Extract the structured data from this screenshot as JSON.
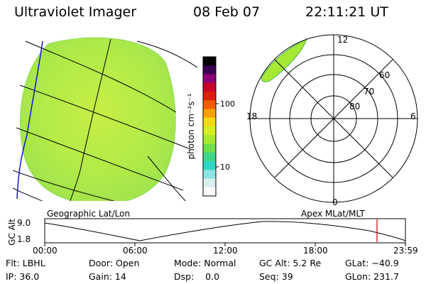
{
  "header": {
    "title": "Ultraviolet Imager",
    "date": "08 Feb 07",
    "time": "22:11:21 UT"
  },
  "colorbar": {
    "unit_label": "photon cm⁻²s⁻¹",
    "ticks": [
      "100",
      "10"
    ],
    "colors": [
      "#000000",
      "#3a0052",
      "#8e0078",
      "#c8002a",
      "#e01c0a",
      "#f45b05",
      "#f8a002",
      "#f2dc10",
      "#d5ef1e",
      "#a8e831",
      "#6fdf4e",
      "#3fd888",
      "#30d7c4",
      "#8de3e4",
      "#d8f0f0",
      "#fafafa"
    ]
  },
  "left_map": {
    "caption": "Geographic Lat/Lon",
    "fill_color": "#b4ec46"
  },
  "right_map": {
    "caption": "Apex MLat/MLT",
    "lat_labels": [
      "80",
      "70",
      "60"
    ],
    "mlt_labels": {
      "top": "12",
      "left": "18",
      "right": "6",
      "bottom": "0"
    }
  },
  "alt_plot": {
    "ylabel": "GC Alt",
    "y_ticks": [
      "9.0",
      "1.8"
    ],
    "x_ticks": [
      "00:00",
      "06:00",
      "12:00",
      "18:00",
      "23:59"
    ],
    "marker_color": "#cc0000"
  },
  "footer": {
    "row1": {
      "flt": "Flt: LBHL",
      "door": "Door: Open",
      "mode": "Mode: Normal",
      "gc_alt": "GC Alt: 5.2 Re",
      "glat": "GLat: −40.9"
    },
    "row2": {
      "ip": "IP: 36.0",
      "gain": "Gain: 14",
      "dsp": "Dsp:    0.0",
      "seq": "Seq: 39",
      "glon": "GLon: 231.7"
    }
  }
}
